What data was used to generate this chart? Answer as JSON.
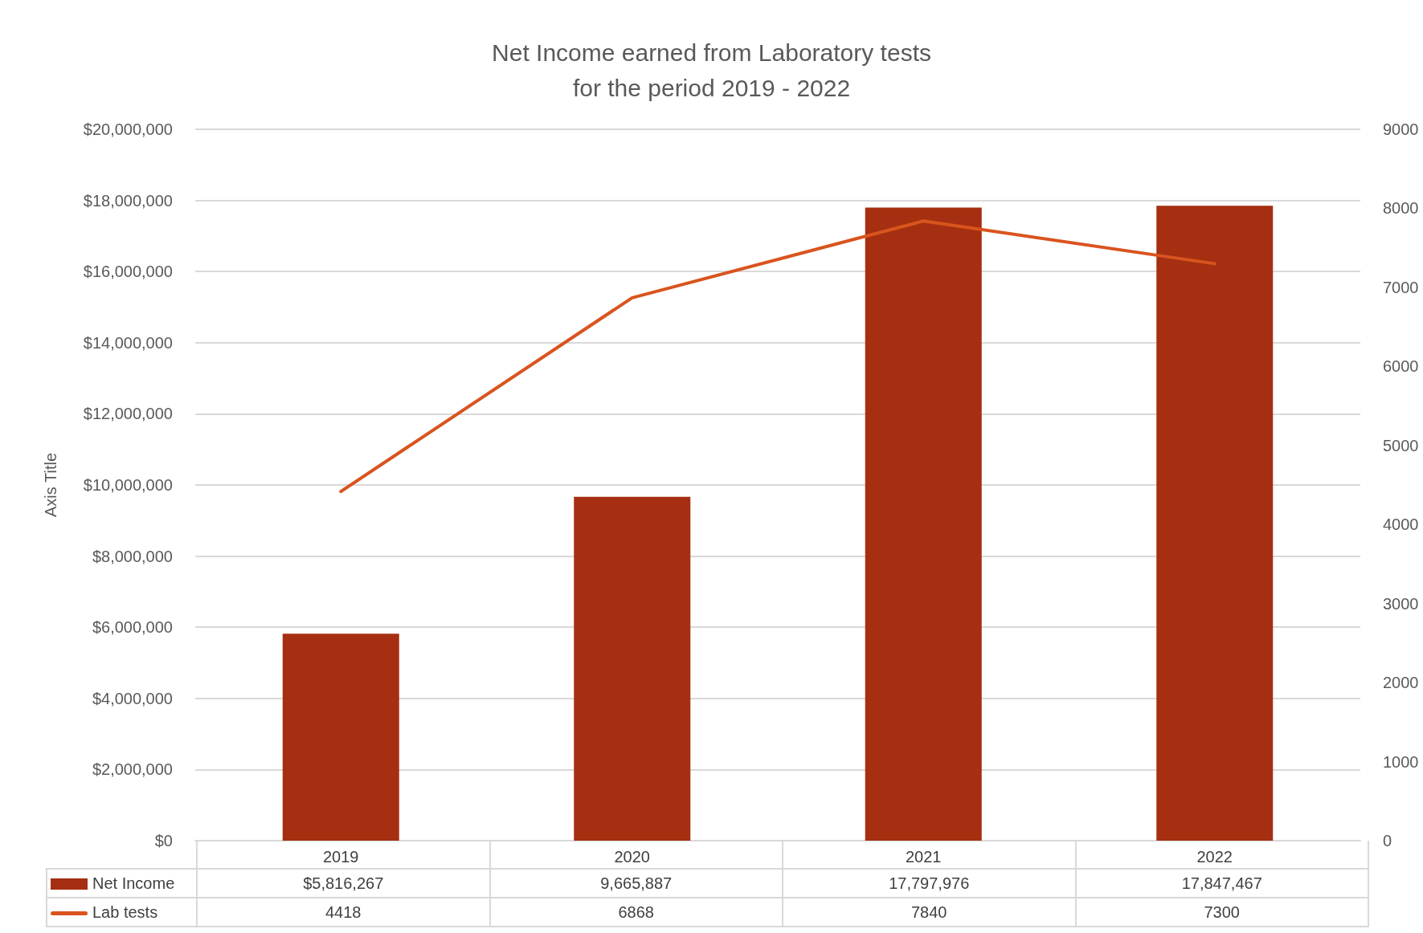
{
  "chart_data": {
    "type": "bar",
    "title": "Net Income earned from Laboratory tests\nfor the period 2019 - 2022",
    "ylabel": "Axis Title",
    "categories": [
      "2019",
      "2020",
      "2021",
      "2022"
    ],
    "series": [
      {
        "name": "Net Income",
        "color": "#a52f10",
        "values": [
          5816267,
          9665887,
          17797976,
          17847467
        ],
        "value_labels": [
          "$5,816,267",
          "9,665,887",
          "17,797,976",
          "17,847,467"
        ]
      },
      {
        "name": "Lab tests",
        "type": "line",
        "axis": "y2",
        "color": "#d9541e",
        "values": [
          4418,
          6868,
          7840,
          7300
        ],
        "value_labels": [
          "4418",
          "6868",
          "7840",
          "7300"
        ]
      }
    ],
    "ylim": [
      0,
      20000000
    ],
    "yticks": [
      {
        "value": 0,
        "label": "$0"
      },
      {
        "value": 2000000,
        "label": "$2,000,000"
      },
      {
        "value": 4000000,
        "label": "$4,000,000"
      },
      {
        "value": 6000000,
        "label": "$6,000,000"
      },
      {
        "value": 8000000,
        "label": "$8,000,000"
      },
      {
        "value": 10000000,
        "label": "$10,000,000"
      },
      {
        "value": 12000000,
        "label": "$12,000,000"
      },
      {
        "value": 14000000,
        "label": "$14,000,000"
      },
      {
        "value": 16000000,
        "label": "$16,000,000"
      },
      {
        "value": 18000000,
        "label": "$18,000,000"
      },
      {
        "value": 20000000,
        "label": "$20,000,000"
      }
    ],
    "y2lim": [
      0,
      9000
    ],
    "y2ticks": [
      0,
      1000,
      2000,
      3000,
      4000,
      5000,
      6000,
      7000,
      8000,
      9000
    ],
    "grid": "y",
    "legend": "bottom",
    "marker": "none",
    "line_style": "solid"
  }
}
